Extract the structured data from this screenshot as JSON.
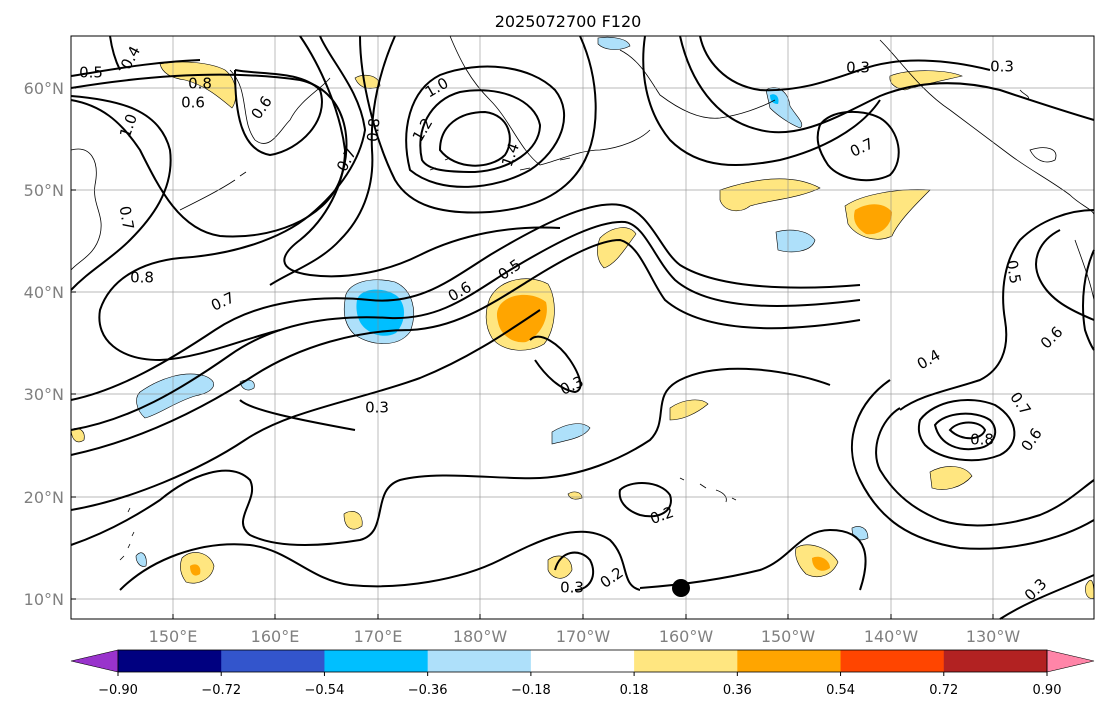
{
  "title": "2025072700 F120",
  "map": {
    "lon_range": [
      "140°E",
      "120°W"
    ],
    "lat_range": [
      "8°N",
      "65°N"
    ],
    "lat_ticks": [
      "10°N",
      "20°N",
      "30°N",
      "40°N",
      "50°N",
      "60°N"
    ],
    "lon_ticks": [
      "150°E",
      "160°E",
      "170°E",
      "180°W",
      "170°W",
      "160°W",
      "150°W",
      "140°W",
      "130°W"
    ],
    "grid": true,
    "coastline_color": "#000000"
  },
  "contour_labels": [
    "0.5",
    "0.4",
    "0.6",
    "0.8",
    "0.6",
    "1.0",
    "0.7",
    "0.8",
    "1.0",
    "1.2",
    "1.4",
    "0.3",
    "0.3",
    "0.7",
    "0.7",
    "0.8",
    "0.7",
    "0.6",
    "0.5",
    "0.5",
    "0.3",
    "0.6",
    "0.3",
    "0.4",
    "0.7",
    "0.8",
    "0.6",
    "0.2",
    "0.3",
    "0.2",
    "0.3"
  ],
  "colorbar": {
    "ticks": [
      "−0.90",
      "−0.72",
      "−0.54",
      "−0.36",
      "−0.18",
      "0.18",
      "0.36",
      "0.54",
      "0.72",
      "0.90"
    ],
    "colors": [
      "#9933cc",
      "#000080",
      "#3355cc",
      "#00bfff",
      "#aee0fa",
      "#ffffff",
      "#ffe680",
      "#ffa500",
      "#ff4500",
      "#b22222",
      "#ff85a8"
    ],
    "extend": "both"
  },
  "marker": {
    "label": "storm-center",
    "color": "#000000"
  }
}
